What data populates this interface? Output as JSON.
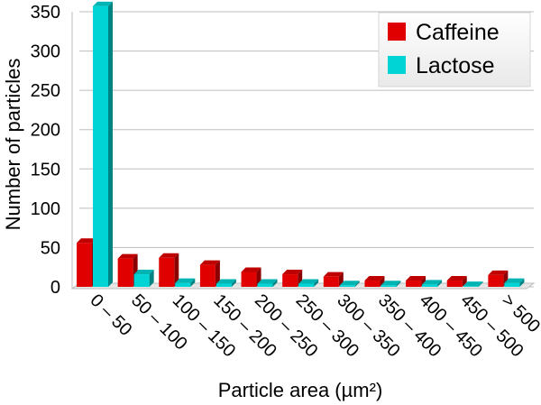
{
  "chart_data": {
    "type": "bar",
    "title": "",
    "xlabel": "Particle area (µm²)",
    "ylabel": "Number of particles",
    "ylim": [
      0,
      350
    ],
    "yticks": [
      0,
      50,
      100,
      150,
      200,
      250,
      300,
      350
    ],
    "grid": "horizontal",
    "legend_position": "top-right",
    "categories": [
      "0 – 50",
      "50 – 100",
      "100 – 150",
      "150 – 200",
      "200 – 250",
      "250 – 300",
      "300 – 350",
      "350 – 400",
      "400 – 450",
      "450 – 500",
      "> 500"
    ],
    "series": [
      {
        "name": "Caffeine",
        "color": "#e00000",
        "values": [
          56,
          36,
          37,
          28,
          19,
          16,
          13,
          8,
          8,
          8,
          15
        ]
      },
      {
        "name": "Lactose",
        "color": "#00d4d4",
        "values": [
          357,
          16,
          5,
          4,
          4,
          4,
          2,
          2,
          3,
          1,
          5
        ]
      }
    ]
  }
}
